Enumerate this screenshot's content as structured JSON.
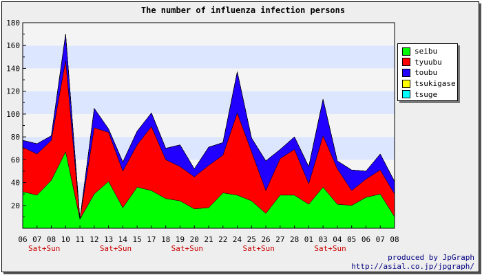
{
  "chart_data": {
    "type": "area",
    "stacked": true,
    "title": "The number of influenza infection persons",
    "xlabel": "",
    "ylabel": "",
    "ylim": [
      0,
      180
    ],
    "yticks": [
      20,
      40,
      60,
      80,
      100,
      120,
      140,
      160,
      180
    ],
    "categories": [
      "06",
      "07",
      "08",
      "10",
      "11",
      "12",
      "13",
      "14",
      "15",
      "17",
      "18",
      "19",
      "20",
      "21",
      "22",
      "24",
      "25",
      "26",
      "27",
      "28",
      "01",
      "03",
      "04",
      "05",
      "06",
      "07",
      "08"
    ],
    "weekend_labels": [
      {
        "category_index": 1,
        "text": "Sat+Sun"
      },
      {
        "category_index": 6,
        "text": "Sat+Sun"
      },
      {
        "category_index": 11,
        "text": "Sat+Sun"
      },
      {
        "category_index": 16,
        "text": "Sat+Sun"
      },
      {
        "category_index": 21,
        "text": "Sat+Sun"
      }
    ],
    "series": [
      {
        "name": "seibu",
        "color": "#00ff00",
        "values": [
          32,
          29,
          42,
          67,
          8,
          30,
          41,
          18,
          36,
          33,
          26,
          24,
          17,
          18,
          31,
          29,
          24,
          13,
          29,
          29,
          21,
          36,
          21,
          20,
          27,
          30,
          10
        ]
      },
      {
        "name": "tyuubu",
        "color": "#ff0000",
        "values": [
          39,
          36,
          35,
          80,
          0,
          58,
          43,
          32,
          37,
          56,
          34,
          30,
          28,
          37,
          33,
          72,
          43,
          20,
          32,
          40,
          18,
          45,
          31,
          13,
          16,
          21,
          20
        ]
      },
      {
        "name": "toubu",
        "color": "#2200ff",
        "values": [
          6,
          9,
          4,
          23,
          0,
          17,
          3,
          8,
          12,
          12,
          10,
          19,
          7,
          16,
          11,
          36,
          12,
          26,
          8,
          11,
          15,
          32,
          7,
          18,
          7,
          14,
          11
        ]
      },
      {
        "name": "tsukigase",
        "color": "#ffff00",
        "values": [
          0,
          0,
          0,
          0,
          0,
          0,
          0,
          0,
          0,
          0,
          0,
          0,
          0,
          0,
          0,
          0,
          0,
          0,
          0,
          0,
          0,
          0,
          0,
          0,
          0,
          0,
          0
        ]
      },
      {
        "name": "tsuge",
        "color": "#00ffff",
        "values": [
          0,
          0,
          0,
          0,
          0,
          0,
          0,
          0,
          0,
          0,
          0,
          0,
          0,
          0,
          0,
          0,
          0,
          0,
          0,
          0,
          0,
          0,
          0,
          0,
          0,
          0,
          0
        ]
      }
    ],
    "legend_position": "right",
    "grid": true,
    "band_colors": [
      "#f4f4f4",
      "#dde6ff"
    ],
    "weekend_label_color": "#cc0000"
  },
  "footer": {
    "line1": "produced by JpGraph",
    "line2": "http://asial.co.jp/jpgraph/"
  }
}
